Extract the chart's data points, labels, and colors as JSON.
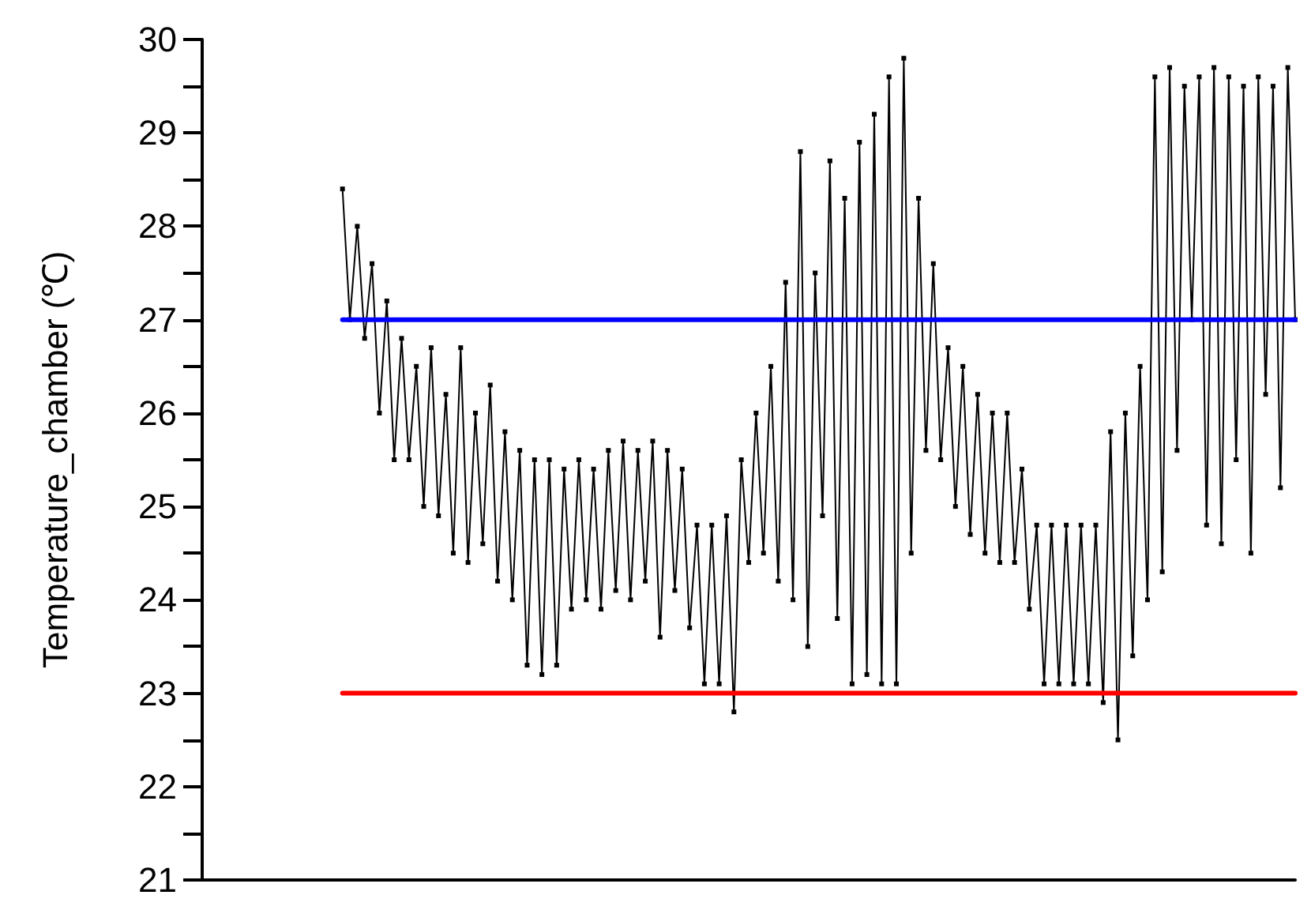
{
  "chart_data": {
    "type": "line",
    "ylabel": "Temperature_chamber (℃)",
    "ylim": [
      21,
      30
    ],
    "yticks": [
      21,
      22,
      23,
      24,
      25,
      26,
      27,
      28,
      29,
      30
    ],
    "tick_labels": "y",
    "grid": false,
    "marker": "square",
    "line_style": "solid",
    "categories": [
      null,
      null,
      null,
      null,
      null,
      null,
      null,
      null,
      null,
      null,
      null,
      null,
      null,
      null,
      null,
      null,
      null,
      null,
      null,
      null,
      null,
      null,
      null,
      null,
      null,
      null,
      null,
      null,
      null,
      null,
      null,
      null,
      null,
      null,
      null,
      null,
      null,
      null,
      null,
      null,
      null,
      null,
      null,
      null,
      null,
      null,
      null,
      null,
      null,
      null,
      null,
      null,
      null,
      null,
      null,
      null,
      null,
      null,
      null,
      null,
      null,
      null,
      null,
      null,
      null,
      null,
      null,
      null,
      null,
      null,
      null,
      null,
      null,
      null,
      null,
      null,
      null,
      null,
      null,
      null,
      null,
      null,
      null,
      null,
      null,
      null,
      null,
      null,
      null,
      null,
      null,
      null,
      null,
      null,
      null,
      null,
      null,
      null,
      null,
      null,
      null,
      null,
      null,
      null,
      null,
      null,
      null,
      null,
      null,
      null,
      null,
      null,
      null,
      null,
      null,
      null,
      null,
      null,
      null,
      null,
      null,
      null,
      null,
      null,
      null,
      null,
      null,
      null,
      null,
      null,
      null,
      null,
      null,
      null,
      null,
      null,
      null,
      null,
      null,
      null,
      null,
      null,
      null,
      null,
      null,
      null,
      null,
      null,
      null
    ],
    "series": [
      {
        "color": "#000000",
        "values": [
          null,
          null,
          null,
          null,
          null,
          null,
          null,
          null,
          null,
          null,
          null,
          null,
          null,
          null,
          null,
          null,
          null,
          null,
          null,
          28.4,
          27.0,
          28.0,
          26.8,
          27.6,
          26.0,
          27.2,
          25.5,
          26.8,
          25.5,
          26.5,
          25.0,
          26.7,
          24.9,
          26.2,
          24.5,
          26.7,
          24.4,
          26.0,
          24.6,
          26.3,
          24.2,
          25.8,
          24.0,
          25.6,
          23.3,
          25.5,
          23.2,
          25.5,
          23.3,
          25.4,
          23.9,
          25.5,
          24.0,
          25.4,
          23.9,
          25.6,
          24.1,
          25.7,
          24.0,
          25.6,
          24.2,
          25.7,
          23.6,
          25.6,
          24.1,
          25.4,
          23.7,
          24.8,
          23.1,
          24.8,
          23.1,
          24.9,
          22.8,
          25.5,
          24.4,
          26.0,
          24.5,
          26.5,
          24.2,
          27.4,
          24.0,
          28.8,
          23.5,
          27.5,
          24.9,
          28.7,
          23.8,
          28.3,
          23.1,
          28.9,
          23.2,
          29.2,
          23.1,
          29.6,
          23.1,
          29.8,
          24.5,
          28.3,
          25.6,
          27.6,
          25.5,
          26.7,
          25.0,
          26.5,
          24.7,
          26.2,
          24.5,
          26.0,
          24.4,
          26.0,
          24.4,
          25.4,
          23.9,
          24.8,
          23.1,
          24.8,
          23.1,
          24.8,
          23.1,
          24.8,
          23.1,
          24.8,
          22.9,
          25.8,
          22.5,
          26.0,
          23.4,
          26.5,
          24.0,
          29.6,
          24.3,
          29.7,
          25.6,
          29.5,
          27.0,
          29.6,
          24.8,
          29.7,
          24.6,
          29.6,
          25.5,
          29.5,
          24.5,
          29.6,
          26.2,
          29.5,
          25.2,
          29.7,
          27.0
        ]
      },
      {
        "color": "#0000ff",
        "marker": "none",
        "values": [
          null,
          null,
          null,
          null,
          null,
          null,
          null,
          null,
          null,
          null,
          null,
          null,
          null,
          null,
          null,
          null,
          null,
          null,
          null,
          27,
          27,
          27,
          27,
          27,
          27,
          27,
          27,
          27,
          27,
          27,
          27,
          27,
          27,
          27,
          27,
          27,
          27,
          27,
          27,
          27,
          27,
          27,
          27,
          27,
          27,
          27,
          27,
          27,
          27,
          27,
          27,
          27,
          27,
          27,
          27,
          27,
          27,
          27,
          27,
          27,
          27,
          27,
          27,
          27,
          27,
          27,
          27,
          27,
          27,
          27,
          27,
          27,
          27,
          27,
          27,
          27,
          27,
          27,
          27,
          27,
          27,
          27,
          27,
          27,
          27,
          27,
          27,
          27,
          27,
          27,
          27,
          27,
          27,
          27,
          27,
          27,
          27,
          27,
          27,
          27,
          27,
          27,
          27,
          27,
          27,
          27,
          27,
          27,
          27,
          27,
          27,
          27,
          27,
          27,
          27,
          27,
          27,
          27,
          27,
          27,
          27,
          27,
          27,
          27,
          27,
          27,
          27,
          27,
          27,
          27,
          27,
          27,
          27,
          27,
          27,
          27,
          27,
          27,
          27,
          27,
          27,
          27,
          27,
          27,
          27,
          27,
          27,
          27,
          27
        ]
      },
      {
        "color": "#ff0000",
        "marker": "none",
        "values": [
          null,
          null,
          null,
          null,
          null,
          null,
          null,
          null,
          null,
          null,
          null,
          null,
          null,
          null,
          null,
          null,
          null,
          null,
          null,
          23,
          23,
          23,
          23,
          23,
          23,
          23,
          23,
          23,
          23,
          23,
          23,
          23,
          23,
          23,
          23,
          23,
          23,
          23,
          23,
          23,
          23,
          23,
          23,
          23,
          23,
          23,
          23,
          23,
          23,
          23,
          23,
          23,
          23,
          23,
          23,
          23,
          23,
          23,
          23,
          23,
          23,
          23,
          23,
          23,
          23,
          23,
          23,
          23,
          23,
          23,
          23,
          23,
          23,
          23,
          23,
          23,
          23,
          23,
          23,
          23,
          23,
          23,
          23,
          23,
          23,
          23,
          23,
          23,
          23,
          23,
          23,
          23,
          23,
          23,
          23,
          23,
          23,
          23,
          23,
          23,
          23,
          23,
          23,
          23,
          23,
          23,
          23,
          23,
          23,
          23,
          23,
          23,
          23,
          23,
          23,
          23,
          23,
          23,
          23,
          23,
          23,
          23,
          23,
          23,
          23,
          23,
          23,
          23,
          23,
          23,
          23,
          23,
          23,
          23,
          23,
          23,
          23,
          23,
          23,
          23,
          23,
          23,
          23,
          23,
          23,
          23,
          23,
          23,
          23
        ]
      }
    ]
  }
}
